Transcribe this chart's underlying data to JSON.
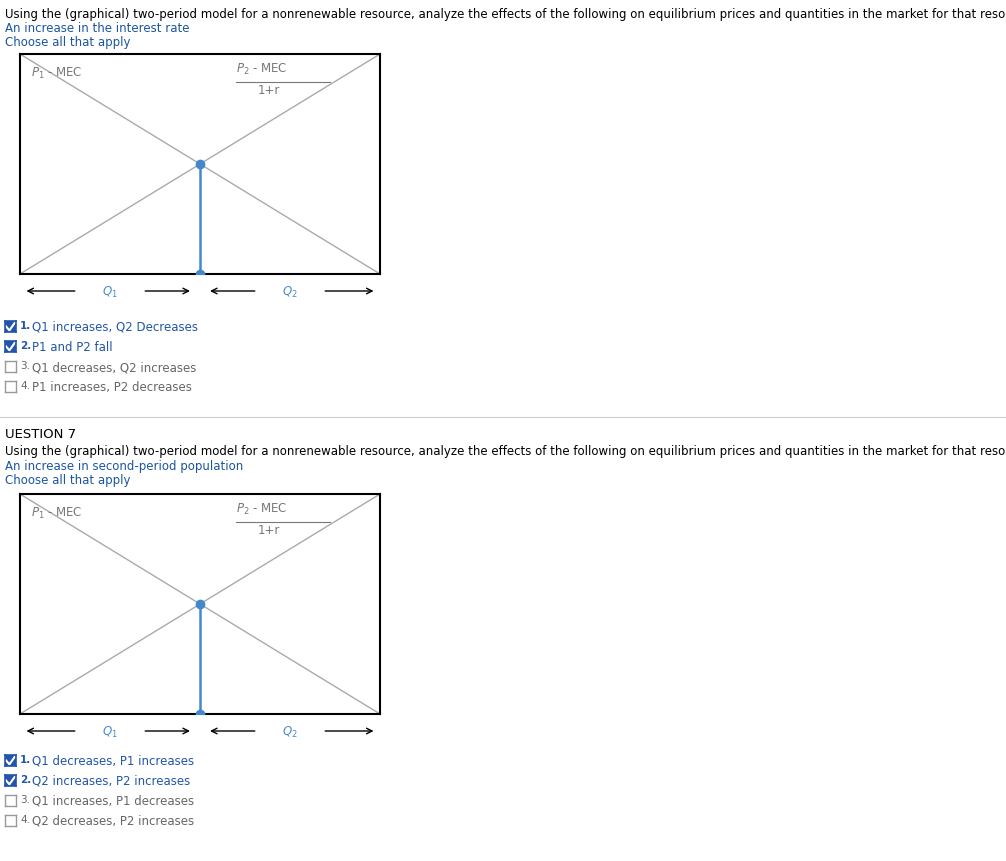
{
  "bg_color": "#ffffff",
  "black": "#000000",
  "gray_line": "#aaaaaa",
  "blue_text": "#1a55a0",
  "orange_text": "#c05000",
  "checked_color": "#2255aa",
  "dot_color": "#4488cc",
  "line_color": "#aaaaaa",
  "divider_color": "#cccccc",
  "option_gray": "#666666",
  "q6_header": "Using the (graphical) two-period model for a nonrenewable resource, analyze the effects of the following on equilibrium prices and quantities in the market for that resource:",
  "q6_sub": "An increase in the interest rate",
  "q6_choose": "Choose all that apply",
  "q6_left_label": "$P_1$ - MEC",
  "q6_right_num": "$P_2$ - MEC",
  "q6_right_den": "1+r",
  "q6_q1": "$Q_1$",
  "q6_q2": "$Q_2$",
  "q6_opts": [
    {
      "num": "1.",
      "text": "Q1 increases, Q2 Decreases",
      "checked": true
    },
    {
      "num": "2.",
      "text": "P1 and P2 fall",
      "checked": true
    },
    {
      "num": "3.",
      "text": "Q1 decreases, Q2 increases",
      "checked": false
    },
    {
      "num": "4.",
      "text": "P1 increases, P2 decreases",
      "checked": false
    }
  ],
  "q7_section": "UESTION 7",
  "q7_header": "Using the (graphical) two-period model for a nonrenewable resource, analyze the effects of the following on equilibrium prices and quantities in the market for that resource:",
  "q7_sub": "An increase in second-period population",
  "q7_choose": "Choose all that apply",
  "q7_left_label": "$P_1$ - MEC",
  "q7_right_num": "$P_2$ - MEC",
  "q7_right_den": "1+r",
  "q7_q1": "$Q_1$",
  "q7_q2": "$Q_2$",
  "q7_opts": [
    {
      "num": "1.",
      "text": "Q1 decreases, P1 increases",
      "checked": true
    },
    {
      "num": "2.",
      "text": "Q2 increases, P2 increases",
      "checked": true
    },
    {
      "num": "3.",
      "text": "Q1 increases, P1 decreases",
      "checked": false
    },
    {
      "num": "4.",
      "text": "Q2 decreases, P2 increases",
      "checked": false
    }
  ],
  "fig_w": 10.06,
  "fig_h": 8.62,
  "dpi": 100
}
